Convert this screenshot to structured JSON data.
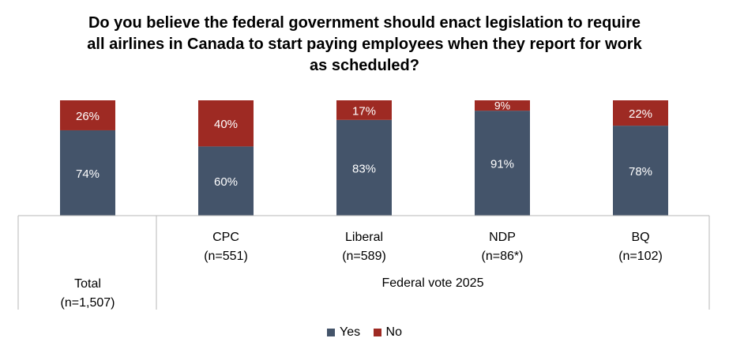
{
  "chart_data": {
    "type": "bar",
    "stacked": true,
    "percent": true,
    "title_lines": [
      "Do you believe the federal government should enact legislation to require",
      "all airlines in Canada to start paying employees when they report for work",
      "as scheduled?"
    ],
    "categories": [
      {
        "label": "",
        "n": "Total\n(n=1,507)"
      },
      {
        "label": "CPC",
        "n": "(n=551)"
      },
      {
        "label": "Liberal",
        "n": "(n=589)"
      },
      {
        "label": "NDP",
        "n": "(n=86*)"
      },
      {
        "label": "BQ",
        "n": "(n=102)"
      }
    ],
    "group_label": "Federal vote 2025",
    "total_label_lines": [
      "Total",
      "(n=1,507)"
    ],
    "series": [
      {
        "name": "Yes",
        "color": "#44546A",
        "values": [
          74,
          60,
          83,
          91,
          78
        ]
      },
      {
        "name": "No",
        "color": "#9E2A23",
        "values": [
          26,
          40,
          17,
          9,
          22
        ]
      }
    ],
    "data_labels": {
      "Yes": [
        "74%",
        "60%",
        "83%",
        "91%",
        "78%"
      ],
      "No": [
        "26%",
        "40%",
        "17%",
        "9%",
        "22%"
      ]
    },
    "ylim": [
      0,
      100
    ],
    "legend_position": "bottom"
  }
}
